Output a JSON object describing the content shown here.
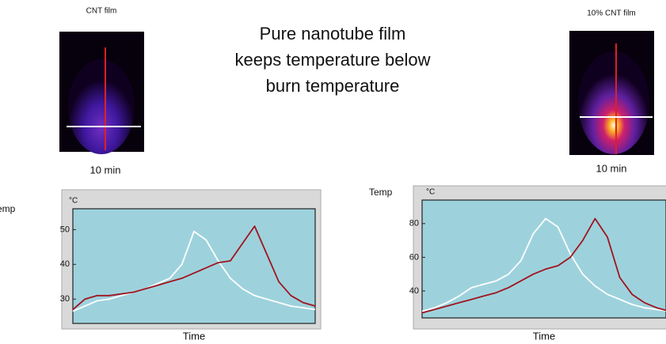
{
  "heading": [
    "Pure nanotube film",
    "keeps temperature below",
    "burn temperature"
  ],
  "images": [
    {
      "label": "CNT film",
      "caption": "10 min"
    },
    {
      "label": "10% CNT film",
      "caption": "10 min"
    }
  ],
  "chart_data": [
    {
      "type": "line",
      "ylabel": "Temp",
      "unit": "°C",
      "xlabel": "Time",
      "x": [
        0,
        1,
        2,
        3,
        4,
        5,
        6,
        7,
        8,
        9,
        10,
        11,
        12,
        13,
        14,
        15,
        16,
        17,
        18,
        19,
        20
      ],
      "xlim": [
        0,
        20
      ],
      "ylim": [
        23,
        56
      ],
      "yticks": [
        30,
        40,
        50
      ],
      "series": [
        {
          "color": "#ffffff",
          "values": [
            26.5,
            28,
            29.5,
            30,
            31,
            32,
            33,
            34.5,
            36,
            40,
            49.5,
            47,
            41,
            36,
            33,
            31,
            30,
            29,
            28,
            27.5,
            27
          ]
        },
        {
          "color": "#a0141e",
          "values": [
            27,
            30,
            31,
            31,
            31.5,
            32,
            33,
            34,
            35,
            36,
            37.5,
            39,
            40.5,
            41,
            46,
            51,
            43,
            35,
            31,
            29,
            28
          ]
        }
      ]
    },
    {
      "type": "line",
      "ylabel": "Temp",
      "unit": "°C",
      "xlabel": "Time",
      "x": [
        0,
        1,
        2,
        3,
        4,
        5,
        6,
        7,
        8,
        9,
        10,
        11,
        12,
        13,
        14,
        15,
        16,
        17,
        18,
        19,
        20
      ],
      "xlim": [
        0,
        20
      ],
      "ylim": [
        24,
        94
      ],
      "yticks": [
        40,
        60,
        80
      ],
      "series": [
        {
          "color": "#ffffff",
          "values": [
            28,
            30,
            33,
            37,
            42,
            44,
            46,
            50,
            58,
            74,
            83,
            78,
            62,
            50,
            43,
            38,
            35,
            32,
            30,
            29,
            28
          ]
        },
        {
          "color": "#a0141e",
          "values": [
            27,
            29,
            31,
            33,
            35,
            37,
            39,
            42,
            46,
            50,
            53,
            55,
            60,
            70,
            83,
            72,
            48,
            38,
            33,
            30,
            28
          ]
        }
      ]
    }
  ]
}
